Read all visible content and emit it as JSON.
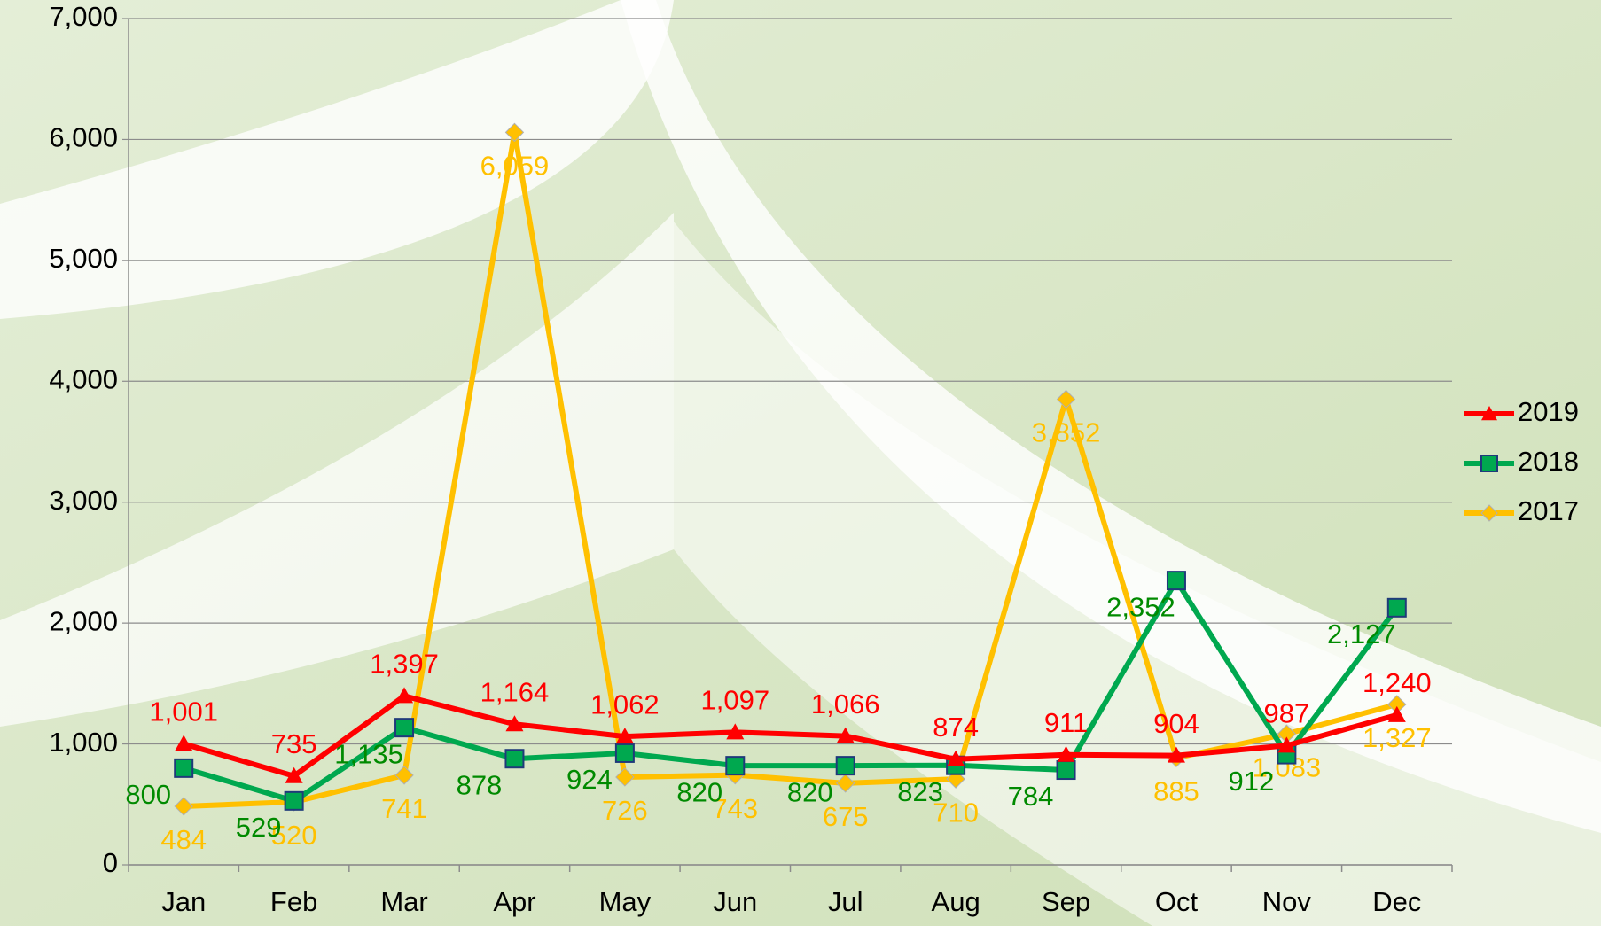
{
  "chart_data": {
    "type": "line",
    "categories": [
      "Jan",
      "Feb",
      "Mar",
      "Apr",
      "May",
      "Jun",
      "Jul",
      "Aug",
      "Sep",
      "Oct",
      "Nov",
      "Dec"
    ],
    "series": [
      {
        "name": "2019",
        "color": "#ff0000",
        "label_color": "#ff0000",
        "marker": "triangle",
        "values": [
          1001,
          735,
          1397,
          1164,
          1062,
          1097,
          1066,
          874,
          911,
          904,
          987,
          1240
        ],
        "value_labels": [
          "1,001",
          "735",
          "1,397",
          "1,164",
          "1,062",
          "1,097",
          "1,066",
          "874",
          "911",
          "904",
          "987",
          "1,240"
        ]
      },
      {
        "name": "2018",
        "color": "#00a84f",
        "label_color": "#008a00",
        "marker": "square",
        "values": [
          800,
          529,
          1135,
          878,
          924,
          820,
          820,
          823,
          784,
          2352,
          912,
          2127
        ],
        "value_labels": [
          "800",
          "529",
          "1,135",
          "878",
          "924",
          "820",
          "820",
          "823",
          "784",
          "2,352",
          "912",
          "2,127"
        ]
      },
      {
        "name": "2017",
        "color": "#ffc000",
        "label_color": "#ffc000",
        "marker": "diamond",
        "values": [
          484,
          520,
          741,
          6059,
          726,
          743,
          675,
          710,
          3852,
          885,
          1083,
          1327
        ],
        "value_labels": [
          "484",
          "520",
          "741",
          "6,059",
          "726",
          "743",
          "675",
          "710",
          "3,852",
          "885",
          "1,083",
          "1,327"
        ]
      }
    ],
    "ylim": [
      0,
      7000
    ],
    "yticks": [
      0,
      {
        "value": 1000,
        "label": "1,000"
      },
      {
        "value": 2000,
        "label": "2,000"
      },
      {
        "value": 3000,
        "label": "3,000"
      },
      {
        "value": 4000,
        "label": "4,000"
      },
      {
        "value": 5000,
        "label": "5,000"
      },
      {
        "value": 6000,
        "label": "6,000"
      },
      {
        "value": 7000,
        "label": "7,000"
      }
    ],
    "grid": true,
    "legend": "right"
  }
}
